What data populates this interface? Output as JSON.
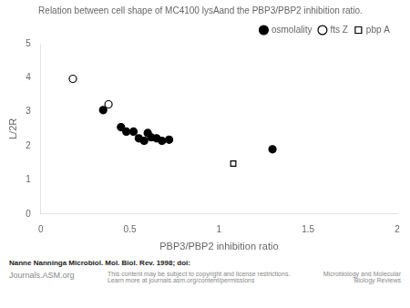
{
  "chart_data": {
    "type": "scatter",
    "title": "Relation between cell shape of MC4100 lysAand the PBP3/PBP2 inhibition ratio.",
    "xlabel": "PBP3/PBP2 inhibition ratio",
    "ylabel": "L/2R",
    "xlim": [
      0,
      2
    ],
    "ylim": [
      0,
      5
    ],
    "xticks": [
      0,
      0.5,
      1,
      1.5,
      2
    ],
    "yticks": [
      0,
      1,
      2,
      3,
      4,
      5
    ],
    "grid": false,
    "legend": "upper right",
    "series": [
      {
        "name": "osmolality",
        "color": "#000000",
        "marker": "circle",
        "x": [
          0.35,
          0.45,
          0.48,
          0.52,
          0.55,
          0.58,
          0.6,
          0.62,
          0.65,
          0.68,
          0.72,
          1.3
        ],
        "values": [
          3.05,
          2.55,
          2.42,
          2.42,
          2.22,
          2.15,
          2.38,
          2.25,
          2.22,
          2.15,
          2.18,
          1.9
        ]
      },
      {
        "name": "fts Z",
        "color": "#000000",
        "marker": "open_circle",
        "x": [
          0.18,
          0.38
        ],
        "values": [
          3.97,
          3.22
        ]
      },
      {
        "name": "pbp A",
        "color": "#000000",
        "marker": "open_square",
        "x": [
          1.08
        ],
        "values": [
          1.48
        ]
      }
    ],
    "annotations": [
      "Nanne Nanninga Microbiol. Mol. Biol. Rev. 1998; doi:",
      "Journals.ASM.org",
      "This content may be subject to copyright and license restrictions.\nLearn more at journals.asm.org/content/permissions",
      "Microbiology and Molecular\nBiology Reviews"
    ]
  }
}
